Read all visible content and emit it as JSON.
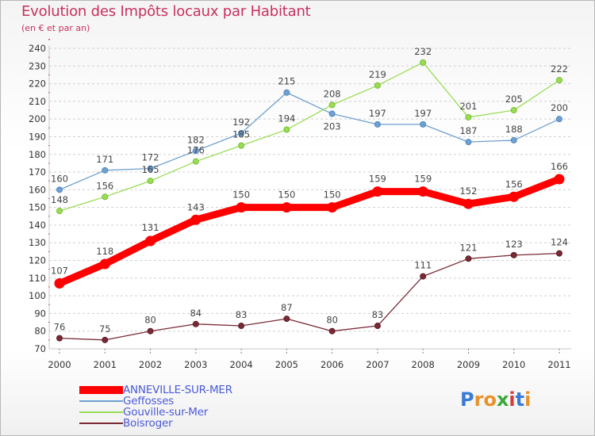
{
  "header": {
    "title": "Evolution des Impôts locaux par Habitant",
    "subtitle": "(en € et par an)"
  },
  "logo": {
    "letters": [
      "P",
      "r",
      "o",
      "x",
      "i",
      "t",
      "i"
    ],
    "colors": [
      "#3a7bd5",
      "#e8922a",
      "#e8922a",
      "#3aa83a",
      "#d63a3a",
      "#3a7bd5",
      "#e8922a"
    ]
  },
  "chart_data": {
    "type": "line",
    "x": [
      "2000",
      "2001",
      "2002",
      "2003",
      "2004",
      "2005",
      "2006",
      "2007",
      "2008",
      "2009",
      "2010",
      "2011"
    ],
    "ylim": [
      70,
      240
    ],
    "yticks": [
      70,
      80,
      90,
      100,
      110,
      120,
      130,
      140,
      150,
      160,
      170,
      180,
      190,
      200,
      210,
      220,
      230,
      240
    ],
    "grid": "horizontal-dashed",
    "legend_position": "bottom-left",
    "series": [
      {
        "name": "ANNEVILLE-SUR-MER",
        "color": "#ff0000",
        "style": "thick",
        "values": [
          107,
          118,
          131,
          143,
          150,
          150,
          150,
          159,
          159,
          152,
          156,
          166
        ]
      },
      {
        "name": "Geffosses",
        "color": "#6fa0d0",
        "style": "thin",
        "values": [
          160,
          171,
          172,
          182,
          192,
          215,
          203,
          197,
          197,
          187,
          188,
          200
        ]
      },
      {
        "name": "Gouville-sur-Mer",
        "color": "#99dd55",
        "style": "thin",
        "values": [
          148,
          156,
          165,
          176,
          185,
          194,
          208,
          219,
          232,
          201,
          205,
          222
        ]
      },
      {
        "name": "Boisroger",
        "color": "#7a2a35",
        "style": "thin",
        "values": [
          76,
          75,
          80,
          84,
          83,
          87,
          80,
          83,
          111,
          121,
          123,
          124
        ]
      }
    ]
  }
}
